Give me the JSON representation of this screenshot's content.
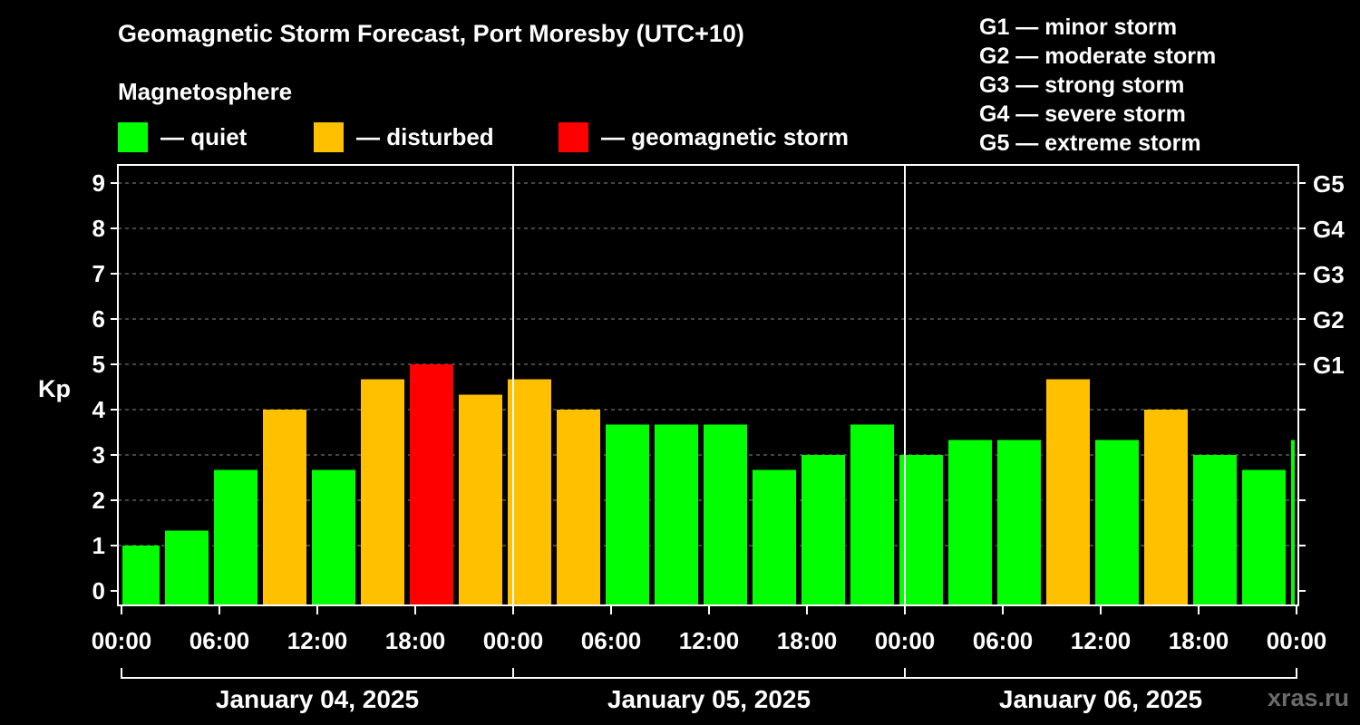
{
  "title": "Geomagnetic Storm Forecast, Port Moresby (UTC+10)",
  "subtitle": "Magnetosphere",
  "legend": [
    {
      "label": "— quiet",
      "color": "#00ff00"
    },
    {
      "label": "— disturbed",
      "color": "#ffc000"
    },
    {
      "label": "— geomagnetic storm",
      "color": "#ff0000"
    }
  ],
  "storm_levels": [
    "G1 — minor storm",
    "G2 — moderate storm",
    "G3 — strong storm",
    "G4 — severe storm",
    "G5 — extreme storm"
  ],
  "watermark": "xras.ru",
  "chart_data": {
    "type": "bar",
    "ylabel": "Kp",
    "ylim": [
      0,
      9
    ],
    "yticks": [
      "0",
      "1",
      "2",
      "3",
      "4",
      "5",
      "6",
      "7",
      "8",
      "9"
    ],
    "right_axis": [
      {
        "kp": 5,
        "label": "G1"
      },
      {
        "kp": 6,
        "label": "G2"
      },
      {
        "kp": 7,
        "label": "G3"
      },
      {
        "kp": 8,
        "label": "G4"
      },
      {
        "kp": 9,
        "label": "G5"
      }
    ],
    "xrange_hours": [
      0,
      72
    ],
    "xticks": [
      "00:00",
      "06:00",
      "12:00",
      "18:00",
      "00:00",
      "06:00",
      "12:00",
      "18:00",
      "00:00",
      "06:00",
      "12:00",
      "18:00",
      "00:00"
    ],
    "days": [
      "January 04, 2025",
      "January 05, 2025",
      "January 06, 2025"
    ],
    "first_bar_hours": 1,
    "bar_interval_hours": 3,
    "values": [
      1.0,
      1.33,
      2.67,
      4.0,
      2.67,
      4.67,
      5.0,
      4.33,
      4.67,
      4.0,
      3.67,
      3.67,
      3.67,
      2.67,
      3.0,
      3.67,
      3.0,
      3.33,
      3.33,
      4.67,
      3.33,
      4.0,
      3.0,
      2.67,
      3.33
    ],
    "levels": [
      "quiet",
      "quiet",
      "quiet",
      "disturbed",
      "quiet",
      "disturbed",
      "storm",
      "disturbed",
      "disturbed",
      "disturbed",
      "quiet",
      "quiet",
      "quiet",
      "quiet",
      "quiet",
      "quiet",
      "quiet",
      "quiet",
      "quiet",
      "disturbed",
      "quiet",
      "disturbed",
      "quiet",
      "quiet",
      "quiet"
    ],
    "level_colors": {
      "quiet": "#00ff00",
      "disturbed": "#ffc000",
      "storm": "#ff0000"
    }
  }
}
